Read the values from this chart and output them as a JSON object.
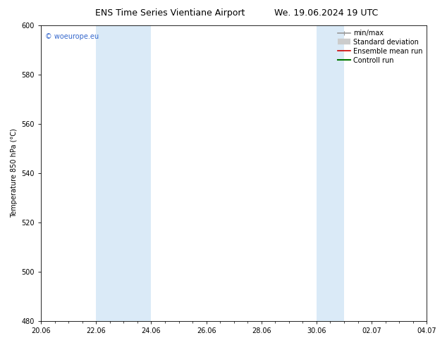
{
  "title_left": "ENS Time Series Vientiane Airport",
  "title_right": "We. 19.06.2024 19 UTC",
  "ylabel": "Temperature 850 hPa (°C)",
  "ylim": [
    480,
    600
  ],
  "yticks": [
    480,
    500,
    520,
    540,
    560,
    580,
    600
  ],
  "xlim_start": 0.0,
  "xlim_end": 14.0,
  "xtick_labels": [
    "20.06",
    "22.06",
    "24.06",
    "26.06",
    "28.06",
    "30.06",
    "02.07",
    "04.07"
  ],
  "xtick_positions": [
    0,
    2,
    4,
    6,
    8,
    10,
    12,
    14
  ],
  "shaded_bands": [
    {
      "x_start": 2.0,
      "x_end": 4.0,
      "color": "#daeaf7"
    },
    {
      "x_start": 10.0,
      "x_end": 11.0,
      "color": "#daeaf7"
    }
  ],
  "watermark_text": "© woeurope.eu",
  "watermark_color": "#3366cc",
  "legend_entries": [
    {
      "label": "min/max",
      "color": "#999999",
      "lw": 1.2,
      "style": "minmax"
    },
    {
      "label": "Standard deviation",
      "color": "#cccccc",
      "lw": 6,
      "style": "thick"
    },
    {
      "label": "Ensemble mean run",
      "color": "#cc0000",
      "lw": 1.2,
      "style": "line"
    },
    {
      "label": "Controll run",
      "color": "#007700",
      "lw": 1.5,
      "style": "line"
    }
  ],
  "bg_color": "#ffffff",
  "plot_bg_color": "#ffffff",
  "title_fontsize": 9,
  "tick_fontsize": 7,
  "ylabel_fontsize": 7,
  "legend_fontsize": 7
}
